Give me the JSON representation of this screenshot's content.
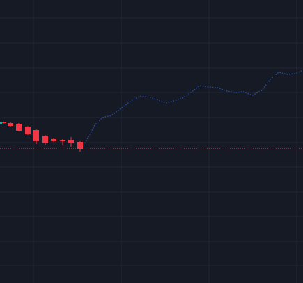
{
  "colors": {
    "background": "#161a25",
    "grid": "#232733",
    "up": "#26a69a",
    "down": "#f23645",
    "line": "#2a4fa8",
    "price_line": "#e0506a"
  },
  "chart_data": {
    "type": "candlestick+line",
    "grid": true,
    "ylim": [
      0,
      407
    ],
    "xlim": [
      0,
      435
    ],
    "candles": [
      {
        "x": 1,
        "open": 231,
        "close": 230,
        "high": 232,
        "low": 229
      },
      {
        "x": 11,
        "open": 230,
        "close": 226,
        "high": 231,
        "low": 225
      },
      {
        "x": 23,
        "open": 229,
        "close": 219,
        "high": 230,
        "low": 218
      },
      {
        "x": 36,
        "open": 225,
        "close": 214,
        "high": 226,
        "low": 213
      },
      {
        "x": 48,
        "open": 220,
        "close": 204,
        "high": 221,
        "low": 200
      },
      {
        "x": 61,
        "open": 212,
        "close": 201,
        "high": 213,
        "low": 199
      },
      {
        "x": 73,
        "open": 207,
        "close": 204,
        "high": 208,
        "low": 203
      },
      {
        "x": 86,
        "open": 205,
        "close": 204,
        "high": 207,
        "low": 198
      },
      {
        "x": 98,
        "open": 206,
        "close": 201,
        "high": 210,
        "low": 196
      },
      {
        "x": 111,
        "open": 203,
        "close": 193,
        "high": 204,
        "low": 189
      }
    ],
    "line": {
      "x": [
        120,
        128,
        136,
        147,
        160,
        174,
        188,
        202,
        216,
        230,
        238,
        250,
        262,
        274,
        287,
        300,
        312,
        326,
        338,
        350,
        362,
        376,
        388,
        400,
        413,
        424,
        433
      ],
      "y": [
        198,
        212,
        227,
        238,
        241,
        251,
        262,
        269,
        267,
        262,
        259,
        262,
        266,
        274,
        284,
        282,
        281,
        276,
        274,
        275,
        270,
        277,
        293,
        303,
        300,
        301,
        305
      ]
    },
    "price_line": 193,
    "last_tick": {
      "x": 0,
      "y": 230
    }
  }
}
